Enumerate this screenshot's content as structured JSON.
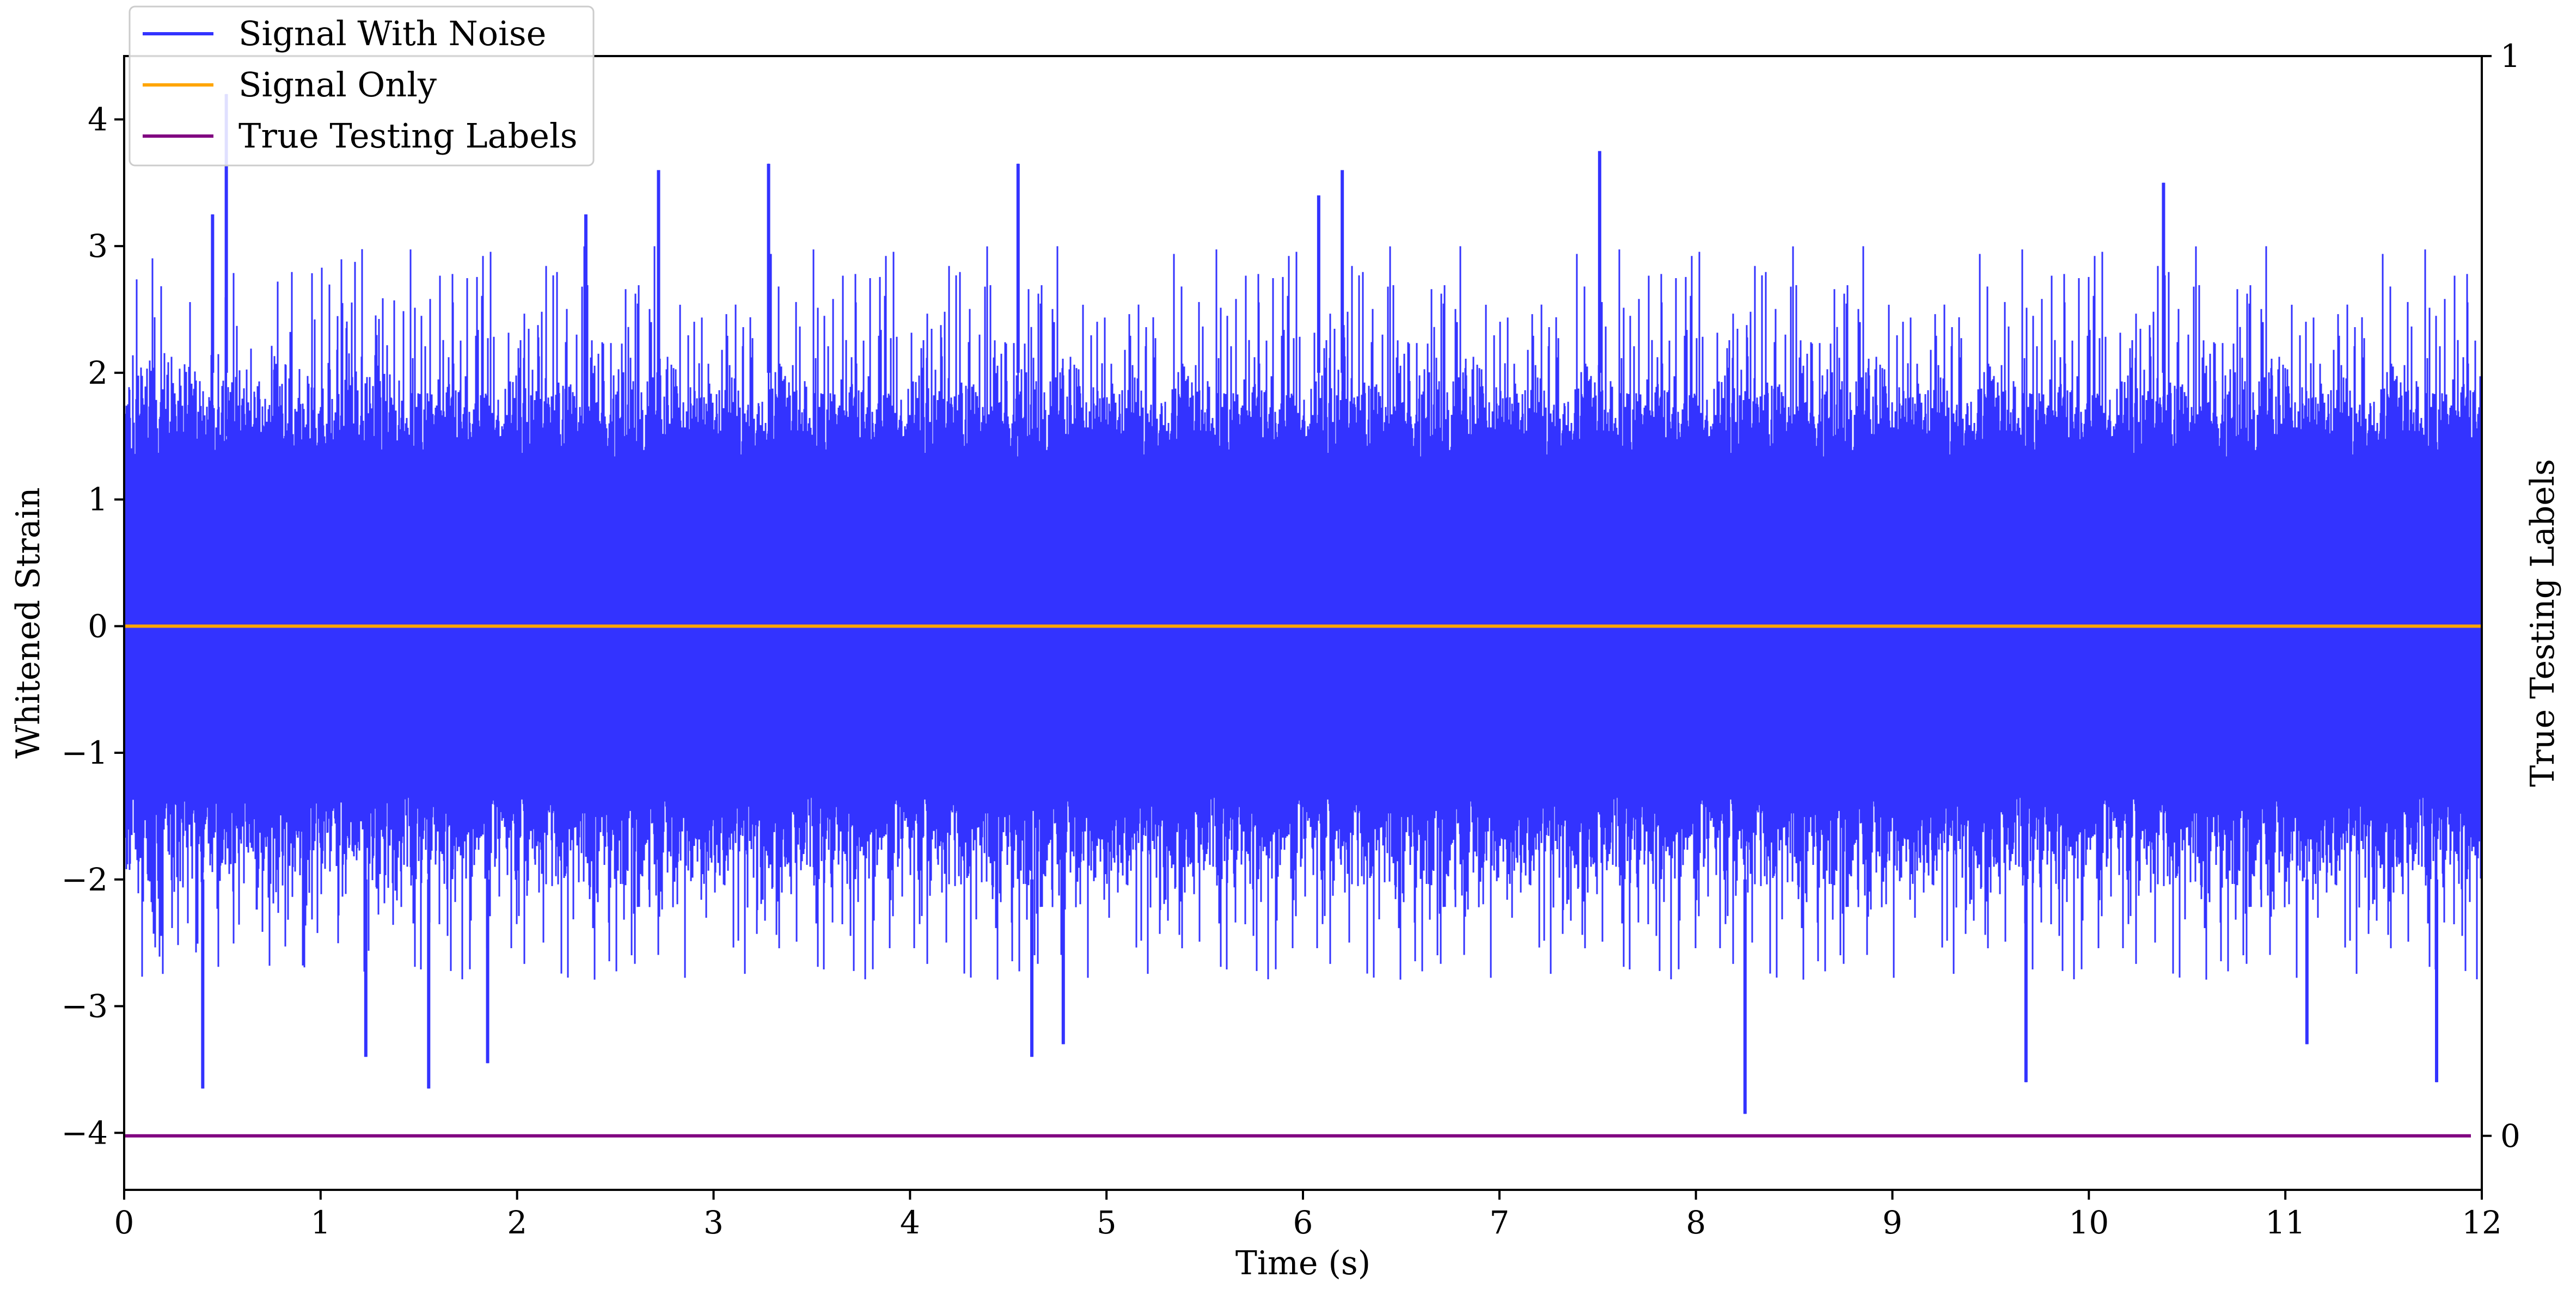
{
  "chart_data": {
    "type": "line",
    "xlabel": "Time (s)",
    "ylabel": "Whitened Strain",
    "y2label": "True Testing Labels",
    "xlim": [
      0,
      12
    ],
    "ylim": [
      -4.45,
      4.5
    ],
    "y2lim": [
      -0.05,
      1.0
    ],
    "x_ticks": [
      0,
      1,
      2,
      3,
      4,
      5,
      6,
      7,
      8,
      9,
      10,
      11,
      12
    ],
    "y_ticks": [
      4,
      3,
      2,
      1,
      0,
      -1,
      -2,
      -3,
      -4
    ],
    "y_tick_labels": [
      "4",
      "3",
      "2",
      "1",
      "0",
      "−1",
      "−2",
      "−3",
      "−4"
    ],
    "y2_ticks": [
      1,
      0
    ],
    "legend_position": "top-left",
    "series": [
      {
        "name": "Signal With Noise",
        "color": "#3333ff",
        "axis": "left",
        "sample_rate_hz": 2048,
        "summary": "dense noise roughly between -2.5 and 2.7, spikes to about 4.2 and down to about -3.85",
        "peaks": [
          [
            0.52,
            4.2
          ],
          [
            0.4,
            -3.65
          ],
          [
            1.55,
            -3.65
          ],
          [
            1.85,
            -3.45
          ],
          [
            2.72,
            3.6
          ],
          [
            3.28,
            3.65
          ],
          [
            4.55,
            3.65
          ],
          [
            7.51,
            3.75
          ],
          [
            8.25,
            -3.85
          ],
          [
            9.68,
            -3.6
          ],
          [
            11.77,
            -3.6
          ],
          [
            0.45,
            3.25
          ],
          [
            1.23,
            -3.4
          ],
          [
            2.35,
            3.25
          ],
          [
            4.62,
            -3.4
          ],
          [
            4.78,
            -3.3
          ],
          [
            6.08,
            3.4
          ],
          [
            6.2,
            3.6
          ],
          [
            10.38,
            3.5
          ],
          [
            11.11,
            -3.3
          ]
        ]
      },
      {
        "name": "Signal Only",
        "color": "#ffa500",
        "axis": "left",
        "x": [
          0,
          12
        ],
        "y": [
          0,
          0
        ]
      },
      {
        "name": "True Testing Labels",
        "color": "#800080",
        "axis": "right",
        "x": [
          0,
          12
        ],
        "y": [
          0,
          0
        ]
      }
    ]
  }
}
